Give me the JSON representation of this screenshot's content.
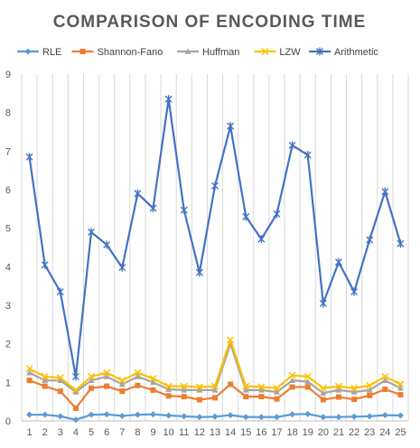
{
  "chart_data": {
    "type": "line",
    "title": "COMPARISON OF ENCODING TIME",
    "xlabel": "",
    "ylabel": "",
    "ylim": [
      0,
      9
    ],
    "y_ticks": [
      0,
      1,
      2,
      3,
      4,
      5,
      6,
      7,
      8,
      9
    ],
    "categories": [
      "1",
      "2",
      "3",
      "4",
      "5",
      "6",
      "7",
      "8",
      "9",
      "10",
      "11",
      "12",
      "13",
      "14",
      "15",
      "16",
      "17",
      "18",
      "19",
      "20",
      "21",
      "22",
      "23",
      "24",
      "25"
    ],
    "grid": "vertical",
    "legend_position": "top",
    "series": [
      {
        "name": "RLE",
        "color": "#5B9BD5",
        "marker": "diamond",
        "values": [
          0.16,
          0.16,
          0.12,
          0.03,
          0.16,
          0.17,
          0.13,
          0.16,
          0.17,
          0.14,
          0.12,
          0.1,
          0.11,
          0.15,
          0.1,
          0.1,
          0.1,
          0.17,
          0.18,
          0.1,
          0.1,
          0.11,
          0.12,
          0.15,
          0.14
        ]
      },
      {
        "name": "Shannon-Fano",
        "color": "#ED7D31",
        "marker": "square",
        "values": [
          1.05,
          0.9,
          0.77,
          0.33,
          0.85,
          0.9,
          0.77,
          0.92,
          0.8,
          0.65,
          0.63,
          0.55,
          0.6,
          0.95,
          0.63,
          0.63,
          0.57,
          0.88,
          0.88,
          0.55,
          0.62,
          0.56,
          0.66,
          0.82,
          0.68
        ]
      },
      {
        "name": "Huffman",
        "color": "#A5A5A5",
        "marker": "triangle",
        "values": [
          1.25,
          1.05,
          1.05,
          0.75,
          1.05,
          1.15,
          0.95,
          1.15,
          1.0,
          0.82,
          0.8,
          0.8,
          0.8,
          2.0,
          0.8,
          0.8,
          0.75,
          1.05,
          1.02,
          0.72,
          0.8,
          0.75,
          0.8,
          1.05,
          0.85
        ]
      },
      {
        "name": "LZW",
        "color": "#FFC000",
        "marker": "x",
        "values": [
          1.35,
          1.15,
          1.12,
          0.8,
          1.15,
          1.25,
          1.05,
          1.25,
          1.1,
          0.9,
          0.9,
          0.88,
          0.9,
          2.1,
          0.9,
          0.88,
          0.85,
          1.18,
          1.15,
          0.85,
          0.9,
          0.85,
          0.92,
          1.15,
          0.95
        ]
      },
      {
        "name": "Arithmetic",
        "color": "#4472C4",
        "marker": "star",
        "values": [
          6.85,
          4.05,
          3.35,
          1.15,
          4.9,
          4.57,
          3.98,
          5.9,
          5.52,
          8.35,
          5.47,
          3.85,
          6.1,
          7.65,
          5.3,
          4.72,
          5.37,
          7.15,
          6.9,
          3.05,
          4.12,
          3.35,
          4.7,
          5.95,
          4.6
        ]
      }
    ]
  }
}
